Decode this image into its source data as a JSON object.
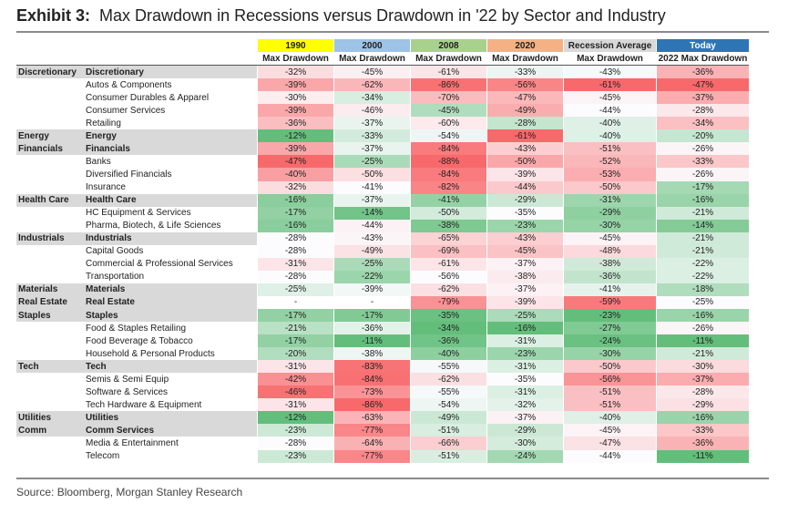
{
  "title": {
    "exhibit": "Exhibit 3:",
    "text": "Max Drawdown in Recessions versus Drawdown in '22 by Sector and Industry"
  },
  "source": "Source: Bloomberg, Morgan Stanley Research",
  "colors": {
    "header_1990": "#ffff00",
    "header_2000": "#9dc3e6",
    "header_2008": "#a9d18e",
    "header_2020": "#f4b183",
    "header_avg": "#d9d9d9",
    "header_today": "#2e75b6",
    "negative_strong": "#f8696b",
    "positive_strong": "#63be7b"
  },
  "chart_data": {
    "type": "table",
    "group_headers": [
      "1990",
      "2000",
      "2008",
      "2020",
      "Recession Average",
      "Today"
    ],
    "column_headers": [
      "Max Drawdown",
      "Max Drawdown",
      "Max Drawdown",
      "Max Drawdown",
      "Max Drawdown",
      "2022 Max Drawdown"
    ],
    "rows": [
      {
        "sector": "Discretionary",
        "industry": "Discretionary",
        "group": true,
        "values": [
          "-32%",
          "-45%",
          "-61%",
          "-33%",
          "-43%",
          "-36%"
        ]
      },
      {
        "sector": "",
        "industry": "Autos & Components",
        "group": false,
        "values": [
          "-39%",
          "-62%",
          "-86%",
          "-56%",
          "-61%",
          "-47%"
        ]
      },
      {
        "sector": "",
        "industry": "Consumer Durables & Apparel",
        "group": false,
        "values": [
          "-30%",
          "-34%",
          "-70%",
          "-47%",
          "-45%",
          "-37%"
        ]
      },
      {
        "sector": "",
        "industry": "Consumer Services",
        "group": false,
        "values": [
          "-39%",
          "-46%",
          "-45%",
          "-49%",
          "-44%",
          "-28%"
        ]
      },
      {
        "sector": "",
        "industry": "Retailing",
        "group": false,
        "values": [
          "-36%",
          "-37%",
          "-60%",
          "-28%",
          "-40%",
          "-34%"
        ]
      },
      {
        "sector": "Energy",
        "industry": "Energy",
        "group": true,
        "values": [
          "-12%",
          "-33%",
          "-54%",
          "-61%",
          "-40%",
          "-20%"
        ]
      },
      {
        "sector": "Financials",
        "industry": "Financials",
        "group": true,
        "values": [
          "-39%",
          "-37%",
          "-84%",
          "-43%",
          "-51%",
          "-26%"
        ]
      },
      {
        "sector": "",
        "industry": "Banks",
        "group": false,
        "values": [
          "-47%",
          "-25%",
          "-88%",
          "-50%",
          "-52%",
          "-33%"
        ]
      },
      {
        "sector": "",
        "industry": "Diversified Financials",
        "group": false,
        "values": [
          "-40%",
          "-50%",
          "-84%",
          "-39%",
          "-53%",
          "-26%"
        ]
      },
      {
        "sector": "",
        "industry": "Insurance",
        "group": false,
        "values": [
          "-32%",
          "-41%",
          "-82%",
          "-44%",
          "-50%",
          "-17%"
        ]
      },
      {
        "sector": "Health Care",
        "industry": "Health Care",
        "group": true,
        "values": [
          "-16%",
          "-37%",
          "-41%",
          "-29%",
          "-31%",
          "-16%"
        ]
      },
      {
        "sector": "",
        "industry": "HC Equipment & Services",
        "group": false,
        "values": [
          "-17%",
          "-14%",
          "-50%",
          "-35%",
          "-29%",
          "-21%"
        ]
      },
      {
        "sector": "",
        "industry": "Pharma, Biotech, & Life Sciences",
        "group": false,
        "values": [
          "-16%",
          "-44%",
          "-38%",
          "-23%",
          "-30%",
          "-14%"
        ]
      },
      {
        "sector": "Industrials",
        "industry": "Industrials",
        "group": true,
        "values": [
          "-28%",
          "-43%",
          "-65%",
          "-43%",
          "-45%",
          "-21%"
        ]
      },
      {
        "sector": "",
        "industry": "Capital Goods",
        "group": false,
        "values": [
          "-28%",
          "-49%",
          "-69%",
          "-45%",
          "-48%",
          "-21%"
        ]
      },
      {
        "sector": "",
        "industry": "Commercial & Professional Services",
        "group": false,
        "values": [
          "-31%",
          "-25%",
          "-61%",
          "-37%",
          "-38%",
          "-22%"
        ]
      },
      {
        "sector": "",
        "industry": "Transportation",
        "group": false,
        "values": [
          "-28%",
          "-22%",
          "-56%",
          "-38%",
          "-36%",
          "-22%"
        ]
      },
      {
        "sector": "Materials",
        "industry": "Materials",
        "group": true,
        "values": [
          "-25%",
          "-39%",
          "-62%",
          "-37%",
          "-41%",
          "-18%"
        ]
      },
      {
        "sector": "Real Estate",
        "industry": "Real Estate",
        "group": true,
        "values": [
          "-",
          "-",
          "-79%",
          "-39%",
          "-59%",
          "-25%"
        ]
      },
      {
        "sector": "Staples",
        "industry": "Staples",
        "group": true,
        "values": [
          "-17%",
          "-17%",
          "-35%",
          "-25%",
          "-23%",
          "-16%"
        ]
      },
      {
        "sector": "",
        "industry": "Food & Staples Retailing",
        "group": false,
        "values": [
          "-21%",
          "-36%",
          "-34%",
          "-16%",
          "-27%",
          "-26%"
        ]
      },
      {
        "sector": "",
        "industry": "Food Beverage & Tobacco",
        "group": false,
        "values": [
          "-17%",
          "-11%",
          "-36%",
          "-31%",
          "-24%",
          "-11%"
        ]
      },
      {
        "sector": "",
        "industry": "Household & Personal Products",
        "group": false,
        "values": [
          "-20%",
          "-38%",
          "-40%",
          "-23%",
          "-30%",
          "-21%"
        ]
      },
      {
        "sector": "Tech",
        "industry": "Tech",
        "group": true,
        "values": [
          "-31%",
          "-83%",
          "-55%",
          "-31%",
          "-50%",
          "-30%"
        ]
      },
      {
        "sector": "",
        "industry": "Semis & Semi Equip",
        "group": false,
        "values": [
          "-42%",
          "-84%",
          "-62%",
          "-35%",
          "-56%",
          "-37%"
        ]
      },
      {
        "sector": "",
        "industry": "Software & Services",
        "group": false,
        "values": [
          "-46%",
          "-73%",
          "-55%",
          "-31%",
          "-51%",
          "-28%"
        ]
      },
      {
        "sector": "",
        "industry": "Tech Hardware & Equipment",
        "group": false,
        "values": [
          "-31%",
          "-86%",
          "-54%",
          "-32%",
          "-51%",
          "-29%"
        ]
      },
      {
        "sector": "Utilities",
        "industry": "Utilities",
        "group": true,
        "values": [
          "-12%",
          "-63%",
          "-49%",
          "-37%",
          "-40%",
          "-16%"
        ]
      },
      {
        "sector": "Comm",
        "industry": "Comm Services",
        "group": true,
        "values": [
          "-23%",
          "-77%",
          "-51%",
          "-29%",
          "-45%",
          "-33%"
        ]
      },
      {
        "sector": "",
        "industry": "Media & Entertainment",
        "group": false,
        "values": [
          "-28%",
          "-64%",
          "-66%",
          "-30%",
          "-47%",
          "-36%"
        ]
      },
      {
        "sector": "",
        "industry": "Telecom",
        "group": false,
        "values": [
          "-23%",
          "-77%",
          "-51%",
          "-24%",
          "-44%",
          "-11%"
        ]
      }
    ]
  }
}
